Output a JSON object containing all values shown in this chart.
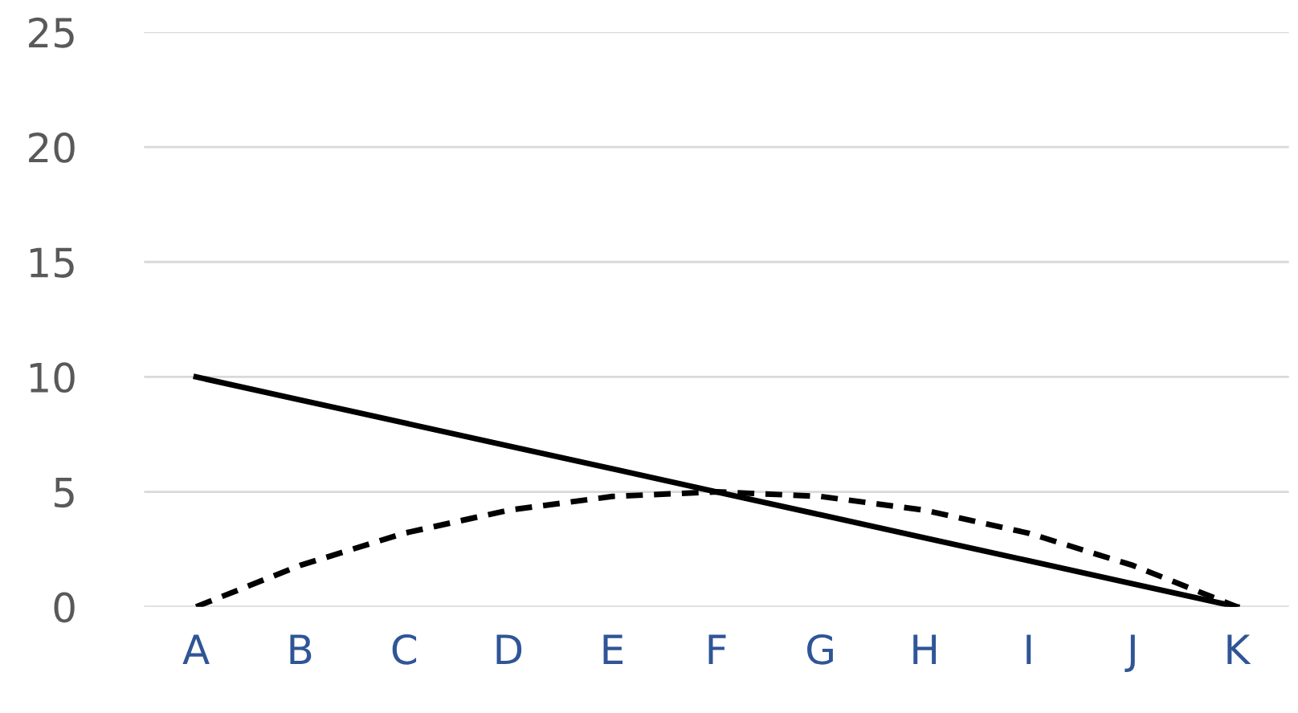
{
  "chart_data": {
    "type": "line",
    "categories": [
      "A",
      "B",
      "C",
      "D",
      "E",
      "F",
      "G",
      "H",
      "I",
      "J",
      "K"
    ],
    "series": [
      {
        "color": "#000000",
        "line_style": "solid",
        "values": [
          10,
          9,
          8,
          7,
          6,
          5,
          4,
          3,
          2,
          1,
          0
        ]
      },
      {
        "color": "#000000",
        "line_style": "dashed",
        "values": [
          0,
          1.8,
          3.2,
          4.2,
          4.8,
          5,
          4.8,
          4.2,
          3.2,
          1.8,
          0
        ]
      }
    ],
    "ylim": [
      0,
      25
    ],
    "yticks": [
      0,
      5,
      10,
      15,
      20,
      25
    ],
    "grid": "y",
    "legend": false,
    "marker": "none"
  }
}
